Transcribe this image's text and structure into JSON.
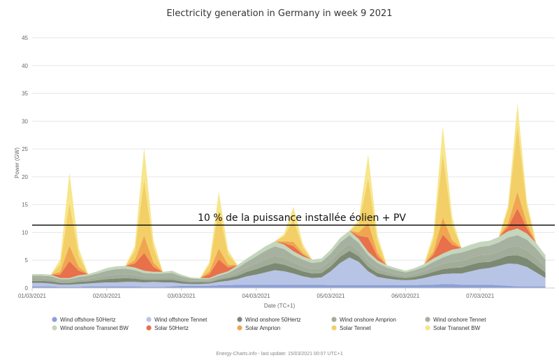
{
  "chart_data": {
    "type": "area",
    "stacked": true,
    "title": "Electricity generation in Germany in week 9 2021",
    "xlabel": "Date (TC+1)",
    "ylabel": "Power (GW)",
    "ylim": [
      0,
      45
    ],
    "yticks": [
      0,
      5,
      10,
      15,
      20,
      25,
      30,
      35,
      40,
      45
    ],
    "x_start": "01/03/2021 00:00",
    "x_step_hours": 3,
    "xtick_labels": [
      "01/03/2021",
      "02/03/2021",
      "03/03/2021",
      "04/03/2021",
      "05/03/2021",
      "06/03/2021",
      "07/03/2021"
    ],
    "grid": true,
    "legend_position": "bottom",
    "annotation": {
      "text": "10 % de la puissance installée éolien + PV",
      "y": 11.3
    },
    "credits": "Energy-Charts.info - last update: 15/03/2021 00:07 UTC+1",
    "series": [
      {
        "name": "Wind offshore 50Hertz",
        "color": "#8c9fd6",
        "values": [
          0.3,
          0.3,
          0.3,
          0.2,
          0.2,
          0.2,
          0.3,
          0.3,
          0.3,
          0.3,
          0.3,
          0.3,
          0.2,
          0.2,
          0.2,
          0.3,
          0.4,
          0.4,
          0.4,
          0.4,
          0.5,
          0.5,
          0.6,
          0.6,
          0.6,
          0.6,
          0.6,
          0.6,
          0.6,
          0.6,
          0.6,
          0.6,
          0.5,
          0.5,
          0.5,
          0.5,
          0.5,
          0.5,
          0.5,
          0.5,
          0.5,
          0.5,
          0.6,
          0.6,
          0.7,
          0.7,
          0.6,
          0.6,
          0.6,
          0.6,
          0.5,
          0.4,
          0.3,
          0.3,
          0.3,
          0.3
        ]
      },
      {
        "name": "Wind offshore Tennet",
        "color": "#b8c4e6",
        "values": [
          0.6,
          0.6,
          0.5,
          0.4,
          0.4,
          0.5,
          0.5,
          0.6,
          0.7,
          0.7,
          0.8,
          0.8,
          0.8,
          0.9,
          0.8,
          0.7,
          0.4,
          0.3,
          0.3,
          0.4,
          0.6,
          0.8,
          1.0,
          1.5,
          1.8,
          2.2,
          2.6,
          2.4,
          2.0,
          1.5,
          1.2,
          1.3,
          2.5,
          4.0,
          5.0,
          4.2,
          2.5,
          1.5,
          1.2,
          1.0,
          0.9,
          1.0,
          1.2,
          1.6,
          1.8,
          1.9,
          2.0,
          2.4,
          2.8,
          3.0,
          3.5,
          4.0,
          4.0,
          3.5,
          2.5,
          1.5
        ]
      },
      {
        "name": "Wind onshore 50Hertz",
        "color": "#7d8a73",
        "values": [
          0.4,
          0.4,
          0.4,
          0.3,
          0.3,
          0.4,
          0.4,
          0.5,
          0.6,
          0.7,
          0.7,
          0.6,
          0.5,
          0.4,
          0.5,
          0.5,
          0.4,
          0.3,
          0.3,
          0.2,
          0.4,
          0.5,
          0.6,
          0.8,
          1.0,
          1.2,
          1.3,
          1.2,
          1.0,
          0.9,
          0.8,
          0.8,
          0.9,
          1.1,
          1.2,
          1.0,
          0.8,
          0.7,
          0.6,
          0.5,
          0.4,
          0.5,
          0.6,
          0.7,
          0.9,
          1.0,
          1.1,
          1.2,
          1.2,
          1.1,
          1.2,
          1.4,
          1.6,
          1.5,
          1.3,
          1.0
        ]
      },
      {
        "name": "Wind onshore Amprion",
        "color": "#a2ad99",
        "values": [
          0.4,
          0.4,
          0.4,
          0.3,
          0.3,
          0.4,
          0.4,
          0.5,
          0.6,
          0.7,
          0.7,
          0.6,
          0.5,
          0.5,
          0.5,
          0.5,
          0.4,
          0.3,
          0.3,
          0.3,
          0.3,
          0.4,
          0.6,
          0.8,
          1.0,
          1.2,
          1.3,
          1.2,
          1.0,
          0.9,
          0.8,
          0.9,
          1.0,
          1.1,
          1.2,
          1.0,
          0.9,
          0.8,
          0.6,
          0.5,
          0.4,
          0.5,
          0.6,
          0.8,
          0.9,
          1.1,
          1.2,
          1.2,
          1.3,
          1.3,
          1.3,
          1.5,
          1.6,
          1.5,
          1.3,
          1.0
        ]
      },
      {
        "name": "Wind onshore Tennet",
        "color": "#a6b29f",
        "values": [
          0.5,
          0.5,
          0.5,
          0.4,
          0.4,
          0.5,
          0.6,
          0.7,
          0.9,
          1.0,
          1.0,
          0.9,
          0.7,
          0.6,
          0.6,
          0.7,
          0.5,
          0.4,
          0.3,
          0.3,
          0.4,
          0.5,
          0.8,
          1.0,
          1.3,
          1.5,
          1.7,
          1.6,
          1.3,
          1.2,
          1.1,
          1.1,
          1.3,
          1.5,
          1.6,
          1.4,
          1.2,
          1.0,
          0.8,
          0.7,
          0.6,
          0.7,
          0.8,
          1.0,
          1.2,
          1.4,
          1.5,
          1.5,
          1.5,
          1.6,
          1.7,
          1.8,
          2.0,
          1.9,
          1.7,
          1.3
        ]
      },
      {
        "name": "Wind onshore Transnet BW",
        "color": "#c4d6bc",
        "values": [
          0.3,
          0.3,
          0.3,
          0.2,
          0.2,
          0.3,
          0.3,
          0.4,
          0.5,
          0.5,
          0.5,
          0.5,
          0.4,
          0.3,
          0.3,
          0.4,
          0.3,
          0.2,
          0.2,
          0.2,
          0.3,
          0.3,
          0.5,
          0.6,
          0.7,
          0.8,
          0.9,
          0.8,
          0.7,
          0.6,
          0.6,
          0.6,
          0.7,
          0.8,
          0.8,
          0.7,
          0.6,
          0.5,
          0.4,
          0.4,
          0.3,
          0.4,
          0.5,
          0.6,
          0.7,
          0.8,
          0.8,
          0.9,
          0.9,
          0.9,
          1.0,
          1.1,
          1.2,
          1.1,
          1.0,
          0.8
        ]
      },
      {
        "name": "Solar 50Hertz",
        "color": "#e8704a",
        "values": [
          0,
          0,
          0,
          0.6,
          3.0,
          0.8,
          0,
          0,
          0,
          0,
          0,
          0.7,
          3.2,
          0.9,
          0,
          0,
          0,
          0,
          0,
          0.7,
          2.6,
          0.7,
          0,
          0,
          0,
          0,
          0,
          0.3,
          0.9,
          0.3,
          0,
          0,
          0,
          0,
          0,
          0.6,
          2.6,
          0.7,
          0,
          0,
          0,
          0,
          0,
          0.7,
          3.4,
          0.9,
          0,
          0,
          0,
          0,
          0,
          0.8,
          3.6,
          1.0,
          0,
          0
        ]
      },
      {
        "name": "Solar Amprion",
        "color": "#f0a550",
        "values": [
          0,
          0,
          0,
          0.5,
          2.8,
          0.7,
          0,
          0,
          0,
          0,
          0,
          0.6,
          3.1,
          0.8,
          0,
          0,
          0,
          0,
          0,
          0.5,
          2.0,
          0.5,
          0,
          0,
          0,
          0,
          0,
          0.3,
          0.8,
          0.3,
          0,
          0,
          0,
          0,
          0,
          0.6,
          2.6,
          0.7,
          0,
          0,
          0,
          0,
          0,
          0.6,
          3.1,
          0.8,
          0,
          0,
          0,
          0,
          0,
          0.7,
          3.0,
          0.9,
          0,
          0
        ]
      },
      {
        "name": "Solar Tennet",
        "color": "#f3cf68",
        "values": [
          0,
          0,
          0,
          1.3,
          7.8,
          2.0,
          0,
          0,
          0,
          0,
          0,
          1.6,
          10.2,
          2.6,
          0,
          0,
          0,
          0,
          0,
          1.2,
          7.1,
          1.8,
          0,
          0,
          0,
          0,
          0,
          0.9,
          4.0,
          1.0,
          0,
          0,
          0,
          0,
          0,
          1.6,
          8.0,
          2.0,
          0,
          0,
          0,
          0,
          0,
          2.2,
          11.4,
          2.8,
          0,
          0,
          0,
          0,
          0,
          2.4,
          11.9,
          3.0,
          0,
          0
        ]
      },
      {
        "name": "Solar Transnet BW",
        "color": "#f7e68a",
        "values": [
          0,
          0,
          0,
          0.9,
          5.3,
          1.3,
          0,
          0,
          0,
          0,
          0,
          0.9,
          5.6,
          1.4,
          0,
          0,
          0,
          0,
          0,
          0.5,
          3.1,
          0.8,
          0,
          0,
          0,
          0,
          0,
          0.4,
          2.3,
          0.6,
          0,
          0,
          0,
          0,
          0,
          0.7,
          4.3,
          1.1,
          0,
          0,
          0,
          0,
          0,
          1.0,
          5.0,
          1.3,
          0,
          0,
          0,
          0,
          0,
          0.8,
          4.0,
          1.0,
          0,
          0
        ]
      }
    ]
  }
}
